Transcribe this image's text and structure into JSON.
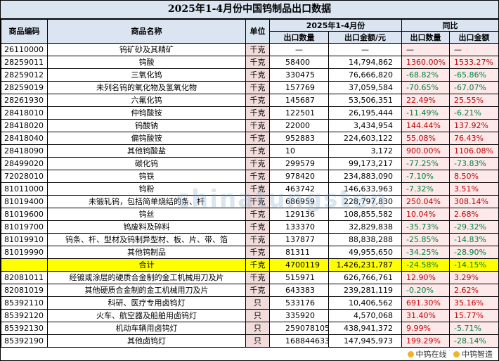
{
  "title": "2025年1-4月份中国钨制品出口数据",
  "headers": {
    "code": "商品编码",
    "name": "商品名称",
    "unit": "单位",
    "period": "2025年1-4月份",
    "qty": "出口数量",
    "amount": "出口金额/元",
    "yoy": "同比",
    "yoy_qty": "出口数量",
    "yoy_amount": "出口金额"
  },
  "rows": [
    {
      "code": "26110000",
      "name": "钨矿砂及其精矿",
      "unit": "千克",
      "qty": "—",
      "amount": "—",
      "yoy_qty": "—",
      "yoy_amount": "—"
    },
    {
      "code": "28259011",
      "name": "钨酸",
      "unit": "千克",
      "qty": "58400",
      "amount": "14,794,862",
      "yoy_qty": "1360.00%",
      "yoy_amount": "1533.27%"
    },
    {
      "code": "28259012",
      "name": "三氧化钨",
      "unit": "千克",
      "qty": "330475",
      "amount": "76,666,820",
      "yoy_qty": "-68.82%",
      "yoy_amount": "-65.86%"
    },
    {
      "code": "28259019",
      "name": "未列名钨的氧化物及氢氧化物",
      "unit": "千克",
      "qty": "157769",
      "amount": "37,059,584",
      "yoy_qty": "-70.65%",
      "yoy_amount": "-67.07%"
    },
    {
      "code": "28261930",
      "name": "六氟化钨",
      "unit": "千克",
      "qty": "145687",
      "amount": "53,506,351",
      "yoy_qty": "22.49%",
      "yoy_amount": "25.55%"
    },
    {
      "code": "28418010",
      "name": "仲钨酸铵",
      "unit": "千克",
      "qty": "122501",
      "amount": "26,195,444",
      "yoy_qty": "-11.49%",
      "yoy_amount": "-6.21%"
    },
    {
      "code": "28418020",
      "name": "钨酸钠",
      "unit": "千克",
      "qty": "22000",
      "amount": "3,434,954",
      "yoy_qty": "144.44%",
      "yoy_amount": "137.92%"
    },
    {
      "code": "28418040",
      "name": "偏钨酸铵",
      "unit": "千克",
      "qty": "952883",
      "amount": "224,603,122",
      "yoy_qty": "55.08%",
      "yoy_amount": "76.43%"
    },
    {
      "code": "28418090",
      "name": "其他钨酸盐",
      "unit": "千克",
      "qty": "10",
      "amount": "3,172",
      "yoy_qty": "900.00%",
      "yoy_amount": "1106.08%"
    },
    {
      "code": "28499020",
      "name": "碳化钨",
      "unit": "千克",
      "qty": "299579",
      "amount": "99,173,217",
      "yoy_qty": "-77.25%",
      "yoy_amount": "-73.83%"
    },
    {
      "code": "72028010",
      "name": "钨铁",
      "unit": "千克",
      "qty": "978420",
      "amount": "234,883,090",
      "yoy_qty": "-7.10%",
      "yoy_amount": "8.50%"
    },
    {
      "code": "81011000",
      "name": "钨粉",
      "unit": "千克",
      "qty": "463742",
      "amount": "146,633,963",
      "yoy_qty": "-7.32%",
      "yoy_amount": "3.51%"
    },
    {
      "code": "81019400",
      "name": "未锻轧钨，包括简单烧结的条、杆",
      "unit": "千克",
      "qty": "686959",
      "amount": "228,797,830",
      "yoy_qty": "250.04%",
      "yoy_amount": "308.14%"
    },
    {
      "code": "81019600",
      "name": "钨丝",
      "unit": "千克",
      "qty": "129136",
      "amount": "108,855,582",
      "yoy_qty": "10.04%",
      "yoy_amount": "2.68%"
    },
    {
      "code": "81019700",
      "name": "钨废料及碎料",
      "unit": "千克",
      "qty": "133370",
      "amount": "32,829,838",
      "yoy_qty": "-35.73%",
      "yoy_amount": "-29.32%"
    },
    {
      "code": "81019910",
      "name": "钨条、杆、型材及钨制异型材、板、片、带、箔",
      "unit": "千克",
      "qty": "137877",
      "amount": "88,838,288",
      "yoy_qty": "-25.85%",
      "yoy_amount": "-14.83%"
    },
    {
      "code": "81019990",
      "name": "其他钨制品",
      "unit": "千克",
      "qty": "81311",
      "amount": "49,955,650",
      "yoy_qty": "-34.25%",
      "yoy_amount": "-28.90%"
    },
    {
      "code": "",
      "name": "合计",
      "unit": "千克",
      "qty": "4700119",
      "amount": "1,426,231,787",
      "yoy_qty": "-24.58%",
      "yoy_amount": "-14.15%",
      "total": true
    },
    {
      "code": "82081011",
      "name": "经镀或涂层的硬质合金制的金工机械用刀及片",
      "unit": "千克",
      "qty": "515971",
      "amount": "626,766,761",
      "yoy_qty": "12.90%",
      "yoy_amount": "3.29%"
    },
    {
      "code": "82081019",
      "name": "其他硬质合金制的金工机械用刀及片",
      "unit": "千克",
      "qty": "643383",
      "amount": "239,281,119",
      "yoy_qty": "-0.20%",
      "yoy_amount": "2.62%"
    },
    {
      "code": "85392110",
      "name": "科研、医疗专用卤钨灯",
      "unit": "只",
      "qty": "533176",
      "amount": "10,406,562",
      "yoy_qty": "691.30%",
      "yoy_amount": "35.16%"
    },
    {
      "code": "85392120",
      "name": "火车、航空器及船舶用卤钨灯",
      "unit": "只",
      "qty": "335920",
      "amount": "4,570,068",
      "yoy_qty": "31.40%",
      "yoy_amount": "15.77%"
    },
    {
      "code": "85392130",
      "name": "机动车辆用卤钨灯",
      "unit": "只",
      "qty": "259078105",
      "amount": "438,941,372",
      "yoy_qty": "9.99%",
      "yoy_amount": "-5.71%"
    },
    {
      "code": "85392190",
      "name": "其他卤钨灯",
      "unit": "只",
      "qty": "168844633",
      "amount": "147,945,973",
      "yoy_qty": "199.29%",
      "yoy_amount": "-28.14%"
    }
  ],
  "footer": {
    "brand1": "中钨在线",
    "brand2": "中钨智造",
    "watermark": "chinatungsten"
  },
  "colors": {
    "header_bg": "#dbe5f1",
    "unit_bg": "#f2dcdb",
    "positive": "#c00000",
    "negative": "#00803c",
    "total_bg": "#ffff00"
  }
}
